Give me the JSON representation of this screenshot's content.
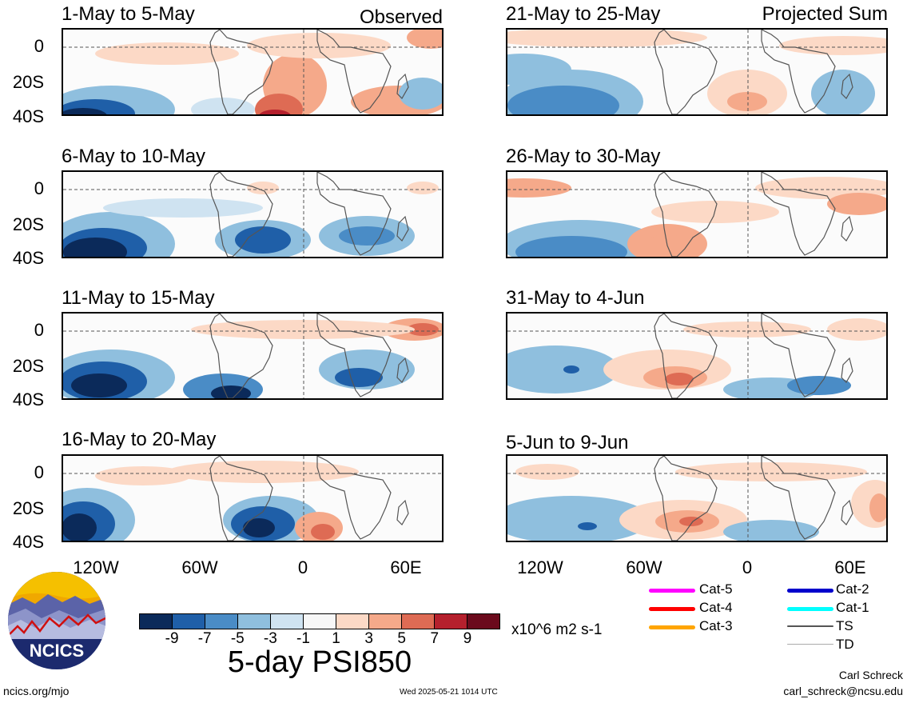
{
  "panels": {
    "left": [
      {
        "title": "1-May to 5-May",
        "tag": "Observed"
      },
      {
        "title": "6-May to 10-May",
        "tag": ""
      },
      {
        "title": "11-May to 15-May",
        "tag": ""
      },
      {
        "title": "16-May to 20-May",
        "tag": ""
      }
    ],
    "right": [
      {
        "title": "21-May to 25-May",
        "tag": "Projected Sum"
      },
      {
        "title": "26-May to 30-May",
        "tag": ""
      },
      {
        "title": "31-May to 4-Jun",
        "tag": ""
      },
      {
        "title": "5-Jun to 9-Jun",
        "tag": ""
      }
    ]
  },
  "axes": {
    "y_ticks": [
      "0",
      "20S",
      "40S"
    ],
    "x_ticks": [
      "120W",
      "60W",
      "0",
      "60E"
    ]
  },
  "colorbar": {
    "colors": [
      "#0b2a5a",
      "#1f5fa8",
      "#4a8cc6",
      "#8fbfde",
      "#cfe3f1",
      "#f7f7f7",
      "#fcd9c6",
      "#f5a98a",
      "#de6b54",
      "#b5202d",
      "#6b0a1c"
    ],
    "labels": [
      "-9",
      "-7",
      "-5",
      "-3",
      "-1",
      "1",
      "3",
      "5",
      "7",
      "9"
    ],
    "units": "x10^6 m2 s-1"
  },
  "legend": {
    "items": [
      {
        "label": "Cat-5",
        "color": "#ff00ff"
      },
      {
        "label": "Cat-4",
        "color": "#ff0000"
      },
      {
        "label": "Cat-3",
        "color": "#ffa500"
      },
      {
        "label": "Cat-2",
        "color": "#0000cc"
      },
      {
        "label": "Cat-1",
        "color": "#00ffff"
      },
      {
        "label": "TS",
        "color": "#555555"
      },
      {
        "label": "TD",
        "color": "#aaaaaa"
      }
    ]
  },
  "logo": {
    "text": "NCICS"
  },
  "footer": {
    "title": "5-day PSI850",
    "url": "ncics.org/mjo",
    "timestamp": "Wed 2025-05-21 1014 UTC",
    "author": "Carl Schreck",
    "email": "carl_schreck@ncsu.edu"
  }
}
